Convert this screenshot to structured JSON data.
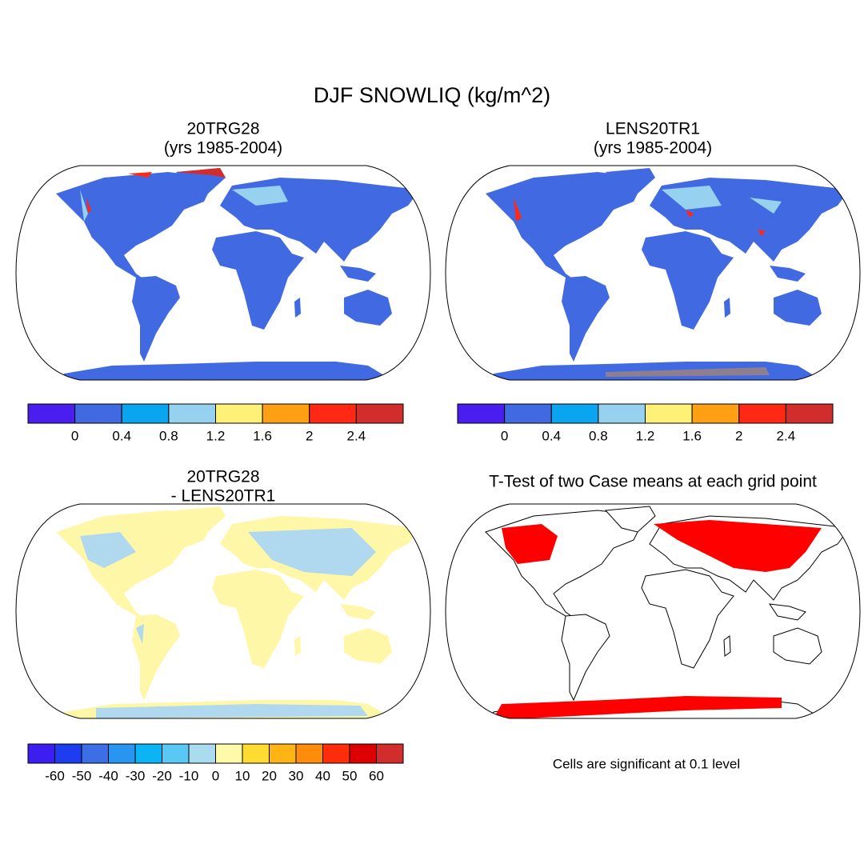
{
  "title": "DJF SNOWLIQ (kg/m^2)",
  "panels": [
    {
      "title": [
        "20TRG28",
        "(yrs 1985-2004)"
      ],
      "colorbar": {
        "colors": [
          "#4b1ef0",
          "#4169e1",
          "#0aa5f0",
          "#96d2f0",
          "#fff078",
          "#ffa014",
          "#ff2814",
          "#d22d2d"
        ],
        "levels": [
          0,
          0.4,
          0.8,
          1.2,
          1.6,
          2,
          2.4
        ]
      }
    },
    {
      "title": [
        "LENS20TR1",
        "(yrs 1985-2004)"
      ],
      "colorbar": {
        "colors": [
          "#4b1ef0",
          "#4169e1",
          "#0aa5f0",
          "#96d2f0",
          "#fff078",
          "#ffa014",
          "#ff2814",
          "#d22d2d"
        ],
        "levels": [
          0,
          0.4,
          0.8,
          1.2,
          1.6,
          2,
          2.4
        ]
      }
    },
    {
      "title": [
        "20TRG28",
        "- LENS20TR1"
      ],
      "colorbar": {
        "colors": [
          "#3d1ef0",
          "#1e3cf0",
          "#3c6ee6",
          "#2896f0",
          "#0ab4f5",
          "#5ac8f5",
          "#aadcf0",
          "#fffaaa",
          "#ffdc32",
          "#ffb414",
          "#ff8c0a",
          "#ff2d0a",
          "#dc0000",
          "#d22d2d"
        ],
        "levels": [
          -60,
          -50,
          -40,
          -30,
          -20,
          -10,
          0,
          10,
          20,
          30,
          40,
          50,
          60
        ]
      }
    },
    {
      "title": [
        "T-Test of two Case means at each grid point"
      ],
      "note": "Cells are significant at 0.1 level"
    }
  ]
}
